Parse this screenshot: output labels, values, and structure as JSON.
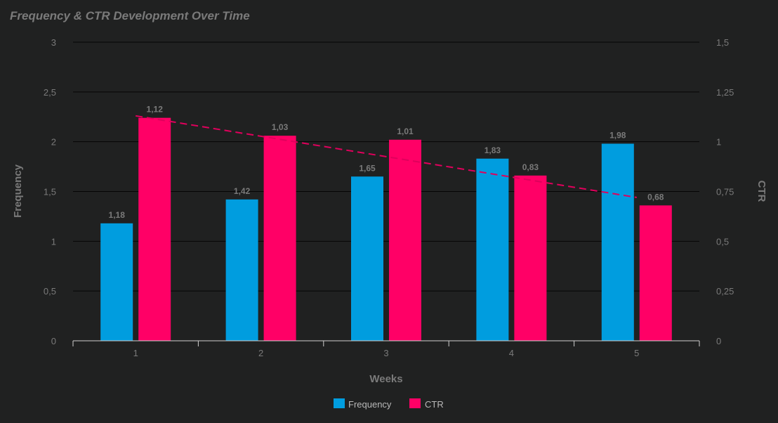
{
  "chart_data": {
    "type": "bar",
    "title": "Frequency & CTR Development Over Time",
    "xlabel": "Weeks",
    "ylabel_left": "Frequency",
    "ylabel_right": "CTR",
    "categories": [
      "1",
      "2",
      "3",
      "4",
      "5"
    ],
    "y_left": {
      "range": [
        0,
        3
      ],
      "ticks": [
        "0",
        "0,5",
        "1",
        "1,5",
        "2",
        "2,5",
        "3"
      ],
      "tick_values": [
        0,
        0.5,
        1,
        1.5,
        2,
        2.5,
        3
      ]
    },
    "y_right": {
      "range": [
        0,
        1.5
      ],
      "ticks": [
        "0",
        "0,25",
        "0,5",
        "0,75",
        "1",
        "1,25",
        "1,5"
      ],
      "tick_values": [
        0,
        0.25,
        0.5,
        0.75,
        1,
        1.25,
        1.5
      ]
    },
    "series": [
      {
        "name": "Frequency",
        "axis": "left",
        "color": "#009ddf",
        "values": [
          1.18,
          1.42,
          1.65,
          1.83,
          1.98
        ],
        "labels": [
          "1,18",
          "1,42",
          "1,65",
          "1,83",
          "1,98"
        ]
      },
      {
        "name": "CTR",
        "axis": "right",
        "color": "#ff0066",
        "values": [
          1.12,
          1.03,
          1.01,
          0.83,
          0.68
        ],
        "labels": [
          "1,12",
          "1,03",
          "1,01",
          "0,83",
          "0,68"
        ]
      }
    ],
    "trendline": {
      "series": "CTR",
      "axis": "right",
      "color": "#e0005c",
      "style": "dashed",
      "start": 1.13,
      "end": 0.72
    },
    "grid": true,
    "legend_position": "bottom-center"
  }
}
